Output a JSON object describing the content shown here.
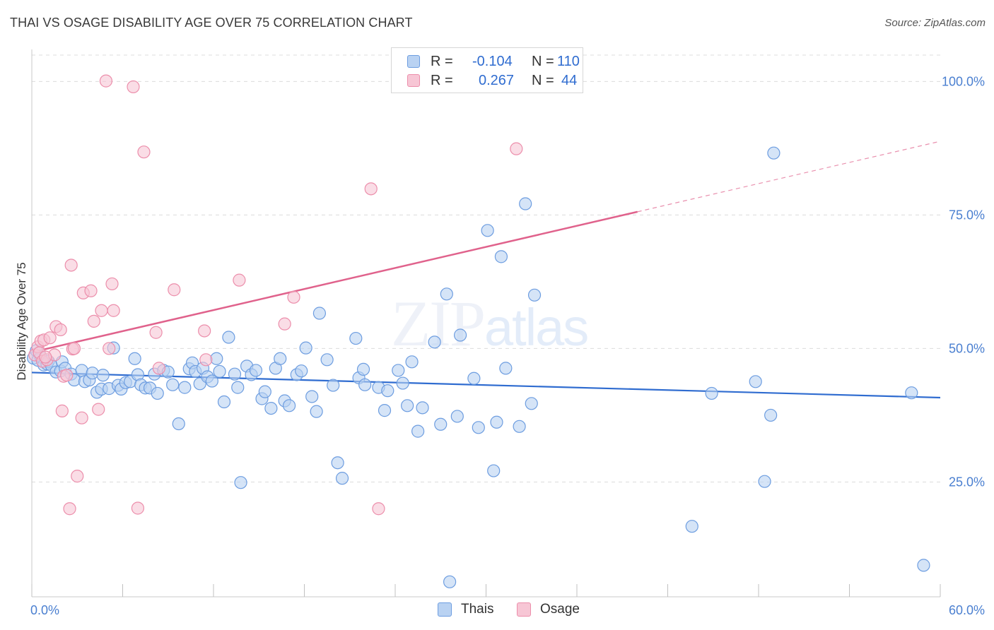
{
  "header": {
    "title": "THAI VS OSAGE DISABILITY AGE OVER 75 CORRELATION CHART",
    "source_prefix": "Source: ",
    "source_name": "ZipAtlas.com"
  },
  "watermark": {
    "part1": "ZIP",
    "part2": "atlas"
  },
  "legend": {
    "thais": {
      "r_label": "R = ",
      "r_value": "-0.104",
      "n_label": "N = ",
      "n_value": "110"
    },
    "osage": {
      "r_label": "R = ",
      "r_value": "0.267",
      "n_label": "N = ",
      "n_value": "44"
    }
  },
  "bottom_legend": {
    "thais": "Thais",
    "osage": "Osage"
  },
  "colors": {
    "thais_fill": "#b9d2f2",
    "thais_stroke": "#6d9de0",
    "thais_line": "#2f6cd0",
    "osage_fill": "#f7c6d5",
    "osage_stroke": "#ec8eab",
    "osage_line": "#e0628c",
    "tick_text": "#4a7fd0",
    "grid": "#dcdcdc"
  },
  "chart_data": {
    "type": "scatter",
    "title": "THAI VS OSAGE DISABILITY AGE OVER 75 CORRELATION CHART",
    "xlabel": "",
    "ylabel": "Disability Age Over 75",
    "xlim": [
      0,
      60
    ],
    "ylim": [
      3.5,
      106
    ],
    "x_tick_labels": [
      {
        "value": 0,
        "label": "0.0%"
      },
      {
        "value": 60,
        "label": "60.0%"
      }
    ],
    "y_tick_labels": [
      {
        "value": 25,
        "label": "25.0%"
      },
      {
        "value": 50,
        "label": "50.0%"
      },
      {
        "value": 75,
        "label": "75.0%"
      },
      {
        "value": 100,
        "label": "100.0%"
      }
    ],
    "y_gridlines": [
      25,
      50,
      75,
      100
    ],
    "legend_position": "top-center",
    "series": [
      {
        "name": "Thais",
        "r": -0.104,
        "n": 110,
        "trend": {
          "x0": 0,
          "y0": 45.5,
          "x1": 60,
          "y1": 40.8
        },
        "points": [
          [
            0.1,
            48.2
          ],
          [
            0.3,
            49.6
          ],
          [
            0.4,
            47.8
          ],
          [
            0.6,
            48.4
          ],
          [
            0.8,
            46.9
          ],
          [
            1.0,
            47.1
          ],
          [
            1.1,
            47.6
          ],
          [
            1.3,
            46.8
          ],
          [
            1.6,
            45.6
          ],
          [
            1.9,
            45.8
          ],
          [
            2.0,
            47.5
          ],
          [
            2.2,
            46.3
          ],
          [
            2.6,
            45.2
          ],
          [
            2.8,
            44.1
          ],
          [
            3.3,
            45.9
          ],
          [
            3.5,
            43.8
          ],
          [
            3.8,
            44.1
          ],
          [
            4.0,
            45.4
          ],
          [
            4.3,
            41.8
          ],
          [
            4.6,
            42.4
          ],
          [
            4.7,
            45.0
          ],
          [
            5.1,
            42.5
          ],
          [
            5.4,
            50.1
          ],
          [
            5.7,
            43.1
          ],
          [
            5.9,
            42.4
          ],
          [
            6.2,
            43.6
          ],
          [
            6.5,
            43.8
          ],
          [
            6.8,
            48.1
          ],
          [
            7.0,
            45.1
          ],
          [
            7.2,
            43.2
          ],
          [
            7.5,
            42.6
          ],
          [
            7.8,
            42.6
          ],
          [
            8.1,
            45.2
          ],
          [
            8.3,
            41.6
          ],
          [
            8.7,
            45.9
          ],
          [
            9.0,
            45.6
          ],
          [
            9.3,
            43.2
          ],
          [
            9.7,
            35.9
          ],
          [
            10.1,
            42.7
          ],
          [
            10.4,
            46.2
          ],
          [
            10.6,
            47.3
          ],
          [
            10.8,
            45.7
          ],
          [
            11.1,
            43.4
          ],
          [
            11.3,
            46.3
          ],
          [
            11.6,
            44.7
          ],
          [
            11.9,
            43.9
          ],
          [
            12.2,
            48.1
          ],
          [
            12.4,
            45.7
          ],
          [
            12.7,
            40.0
          ],
          [
            13.0,
            52.1
          ],
          [
            13.4,
            45.2
          ],
          [
            13.6,
            42.7
          ],
          [
            13.8,
            24.9
          ],
          [
            14.2,
            46.7
          ],
          [
            14.5,
            45.1
          ],
          [
            14.8,
            45.9
          ],
          [
            15.2,
            40.6
          ],
          [
            15.4,
            41.9
          ],
          [
            15.8,
            38.8
          ],
          [
            16.1,
            46.3
          ],
          [
            16.4,
            48.1
          ],
          [
            16.7,
            40.2
          ],
          [
            17.0,
            39.3
          ],
          [
            17.5,
            45.1
          ],
          [
            17.8,
            45.8
          ],
          [
            18.1,
            50.1
          ],
          [
            18.5,
            41.0
          ],
          [
            18.8,
            38.2
          ],
          [
            19.0,
            56.6
          ],
          [
            19.5,
            47.9
          ],
          [
            19.9,
            43.1
          ],
          [
            20.2,
            28.6
          ],
          [
            20.5,
            25.7
          ],
          [
            21.4,
            51.9
          ],
          [
            21.6,
            44.5
          ],
          [
            21.9,
            46.1
          ],
          [
            22.0,
            43.2
          ],
          [
            22.9,
            42.7
          ],
          [
            23.3,
            38.4
          ],
          [
            23.5,
            42.1
          ],
          [
            24.2,
            45.9
          ],
          [
            24.5,
            43.5
          ],
          [
            24.8,
            39.3
          ],
          [
            25.1,
            47.5
          ],
          [
            25.5,
            34.5
          ],
          [
            25.8,
            38.9
          ],
          [
            26.6,
            51.2
          ],
          [
            27.0,
            35.8
          ],
          [
            27.4,
            60.2
          ],
          [
            27.6,
            6.3
          ],
          [
            28.1,
            37.3
          ],
          [
            28.3,
            52.5
          ],
          [
            29.2,
            44.4
          ],
          [
            29.5,
            35.2
          ],
          [
            30.1,
            72.1
          ],
          [
            30.5,
            27.1
          ],
          [
            30.7,
            36.2
          ],
          [
            31.0,
            67.2
          ],
          [
            31.3,
            46.3
          ],
          [
            32.2,
            35.4
          ],
          [
            32.6,
            77.1
          ],
          [
            33.0,
            39.7
          ],
          [
            33.2,
            60.0
          ],
          [
            43.6,
            16.7
          ],
          [
            44.9,
            41.6
          ],
          [
            47.8,
            43.8
          ],
          [
            48.4,
            25.1
          ],
          [
            48.8,
            37.5
          ],
          [
            49.0,
            86.6
          ],
          [
            58.1,
            41.7
          ],
          [
            58.9,
            9.4
          ]
        ]
      },
      {
        "name": "Osage",
        "r": 0.267,
        "n": 44,
        "trend": {
          "x0": 0,
          "y0": 49.3,
          "x1": 40.0,
          "y1": 75.6
        },
        "trend_dashed_to": {
          "x": 60,
          "y": 88.8
        },
        "points": [
          [
            0.2,
            48.8
          ],
          [
            0.4,
            50.3
          ],
          [
            0.5,
            49.2
          ],
          [
            0.6,
            51.4
          ],
          [
            0.7,
            47.6
          ],
          [
            0.8,
            51.6
          ],
          [
            1.0,
            47.9
          ],
          [
            1.2,
            52.0
          ],
          [
            1.5,
            48.8
          ],
          [
            1.6,
            54.1
          ],
          [
            1.9,
            53.5
          ],
          [
            2.0,
            38.3
          ],
          [
            2.1,
            44.8
          ],
          [
            2.3,
            45.0
          ],
          [
            2.5,
            20.0
          ],
          [
            2.6,
            65.6
          ],
          [
            2.7,
            49.9
          ],
          [
            2.8,
            50.0
          ],
          [
            3.0,
            26.1
          ],
          [
            3.3,
            37.0
          ],
          [
            3.4,
            60.4
          ],
          [
            3.9,
            60.8
          ],
          [
            4.1,
            55.1
          ],
          [
            4.4,
            38.6
          ],
          [
            4.6,
            57.1
          ],
          [
            4.9,
            100.1
          ],
          [
            5.1,
            50.0
          ],
          [
            5.3,
            62.1
          ],
          [
            5.4,
            57.1
          ],
          [
            6.7,
            99.0
          ],
          [
            7.0,
            20.1
          ],
          [
            7.4,
            86.8
          ],
          [
            8.2,
            53.0
          ],
          [
            8.4,
            46.3
          ],
          [
            9.4,
            61.0
          ],
          [
            11.4,
            53.3
          ],
          [
            11.5,
            47.9
          ],
          [
            13.7,
            62.8
          ],
          [
            16.7,
            54.6
          ],
          [
            17.3,
            59.6
          ],
          [
            22.4,
            79.9
          ],
          [
            22.9,
            20.0
          ],
          [
            32.0,
            87.4
          ],
          [
            0.9,
            48.4
          ]
        ]
      }
    ]
  }
}
